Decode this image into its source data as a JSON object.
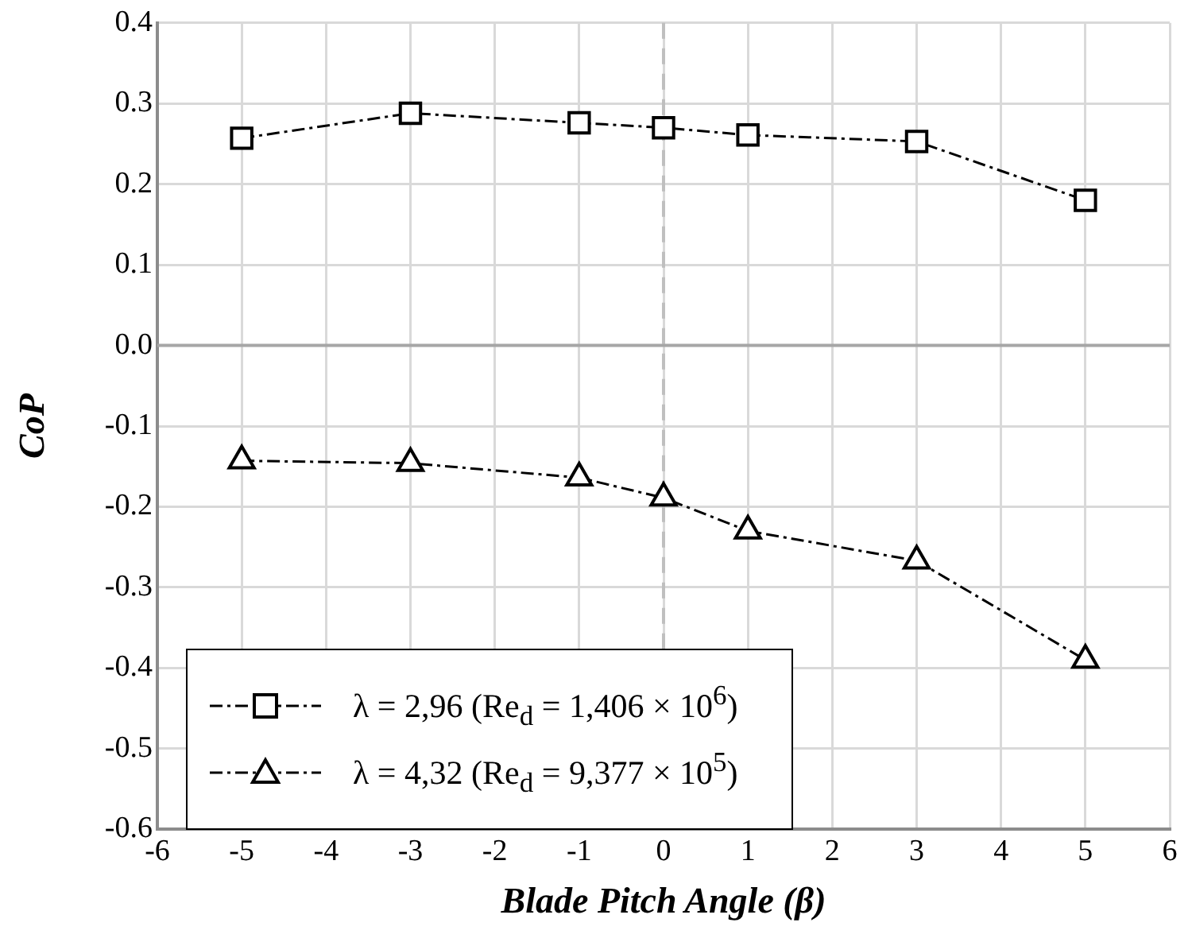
{
  "chart_data": {
    "type": "line",
    "xlabel": "Blade Pitch Angle (β)",
    "ylabel": "CoP",
    "x": [
      -5,
      -3,
      -1,
      0,
      1,
      3,
      5
    ],
    "series": [
      {
        "name": "λ = 2,96 (Re$_{d}$ = 1,406 × 10$^{6}$)",
        "color": "#000000",
        "marker": "square",
        "values": [
          0.257,
          0.288,
          0.276,
          0.27,
          0.261,
          0.253,
          0.18
        ]
      },
      {
        "name": "λ = 4,32 (Re$_{d}$ = 9,377 × 10$^{5}$)",
        "color": "#000000",
        "marker": "triangle",
        "values": [
          -0.143,
          -0.146,
          -0.164,
          -0.189,
          -0.23,
          -0.267,
          -0.39
        ]
      }
    ],
    "xlim": [
      -6,
      6
    ],
    "xticks": [
      -6,
      -5,
      -4,
      -3,
      -2,
      -1,
      0,
      1,
      2,
      3,
      4,
      5,
      6
    ],
    "ylim": [
      -0.6,
      0.4
    ],
    "yticks": [
      -0.6,
      -0.5,
      -0.4,
      -0.3,
      -0.2,
      -0.1,
      {
        "value": 0,
        "label": "0.0"
      },
      0.1,
      0.2,
      0.3,
      0.4
    ],
    "ref_lines": [
      {
        "axis": "x",
        "value": 0,
        "color": "#bfbfbf",
        "line_style": "dashed"
      }
    ],
    "grid": true,
    "legend": "bottom left",
    "line_style": "dashed"
  }
}
